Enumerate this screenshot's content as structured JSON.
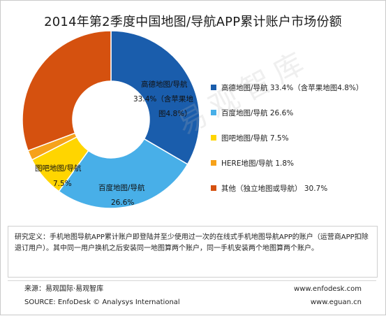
{
  "title": "2014年第2季度中国地图/导航APP累计账户市场份额",
  "watermark": "易观智库",
  "chart_data": {
    "type": "pie",
    "donut": true,
    "title": "2014年第2季度中国地图/导航APP累计账户市场份额",
    "categories": [
      "高德地图/导航",
      "百度地图/导航",
      "图吧地图/导航",
      "HERE地图/导航",
      "其他（独立地图或导航）"
    ],
    "values": [
      33.4,
      26.6,
      7.5,
      1.8,
      30.7
    ],
    "colors": [
      "#1a5dac",
      "#48afe8",
      "#ffd500",
      "#f6a21a",
      "#d5510f"
    ],
    "legend": [
      "高德地图/导航 33.4%（含苹果地图4.8%）",
      "百度地图/导航 26.6%",
      "图吧地图/导航 7.5%",
      "HERE地图/导航 1.8%",
      "其他（独立地图或导航） 30.7%"
    ],
    "slice_labels": {
      "gaode_line1": "高德地图/导航",
      "gaode_line2": "33.4%（含苹果地",
      "gaode_line3": "图4.8%）",
      "baidu_line1": "百度地图/导航",
      "baidu_line2": "26.6%",
      "tuba_line1": "图吧地图/导航",
      "tuba_line2": "7.5%"
    },
    "legend_position": "right"
  },
  "note": {
    "text": "研究定义：手机地图导航APP累计账户即登陆并至少使用过一次的在线式手机地图导航APP的账户（运营商APP扣除退订用户）。其中同一用户换机之后安装同一地图算两个账户，同一手机安装两个地图算两个账户。"
  },
  "footer": {
    "source_cn": "来源：易观国际·易观智库",
    "source_en": "SOURCE: EnfoDesk © Analysys International",
    "url1": "www.enfodesk.com",
    "url2": "www.eguan.cn"
  }
}
